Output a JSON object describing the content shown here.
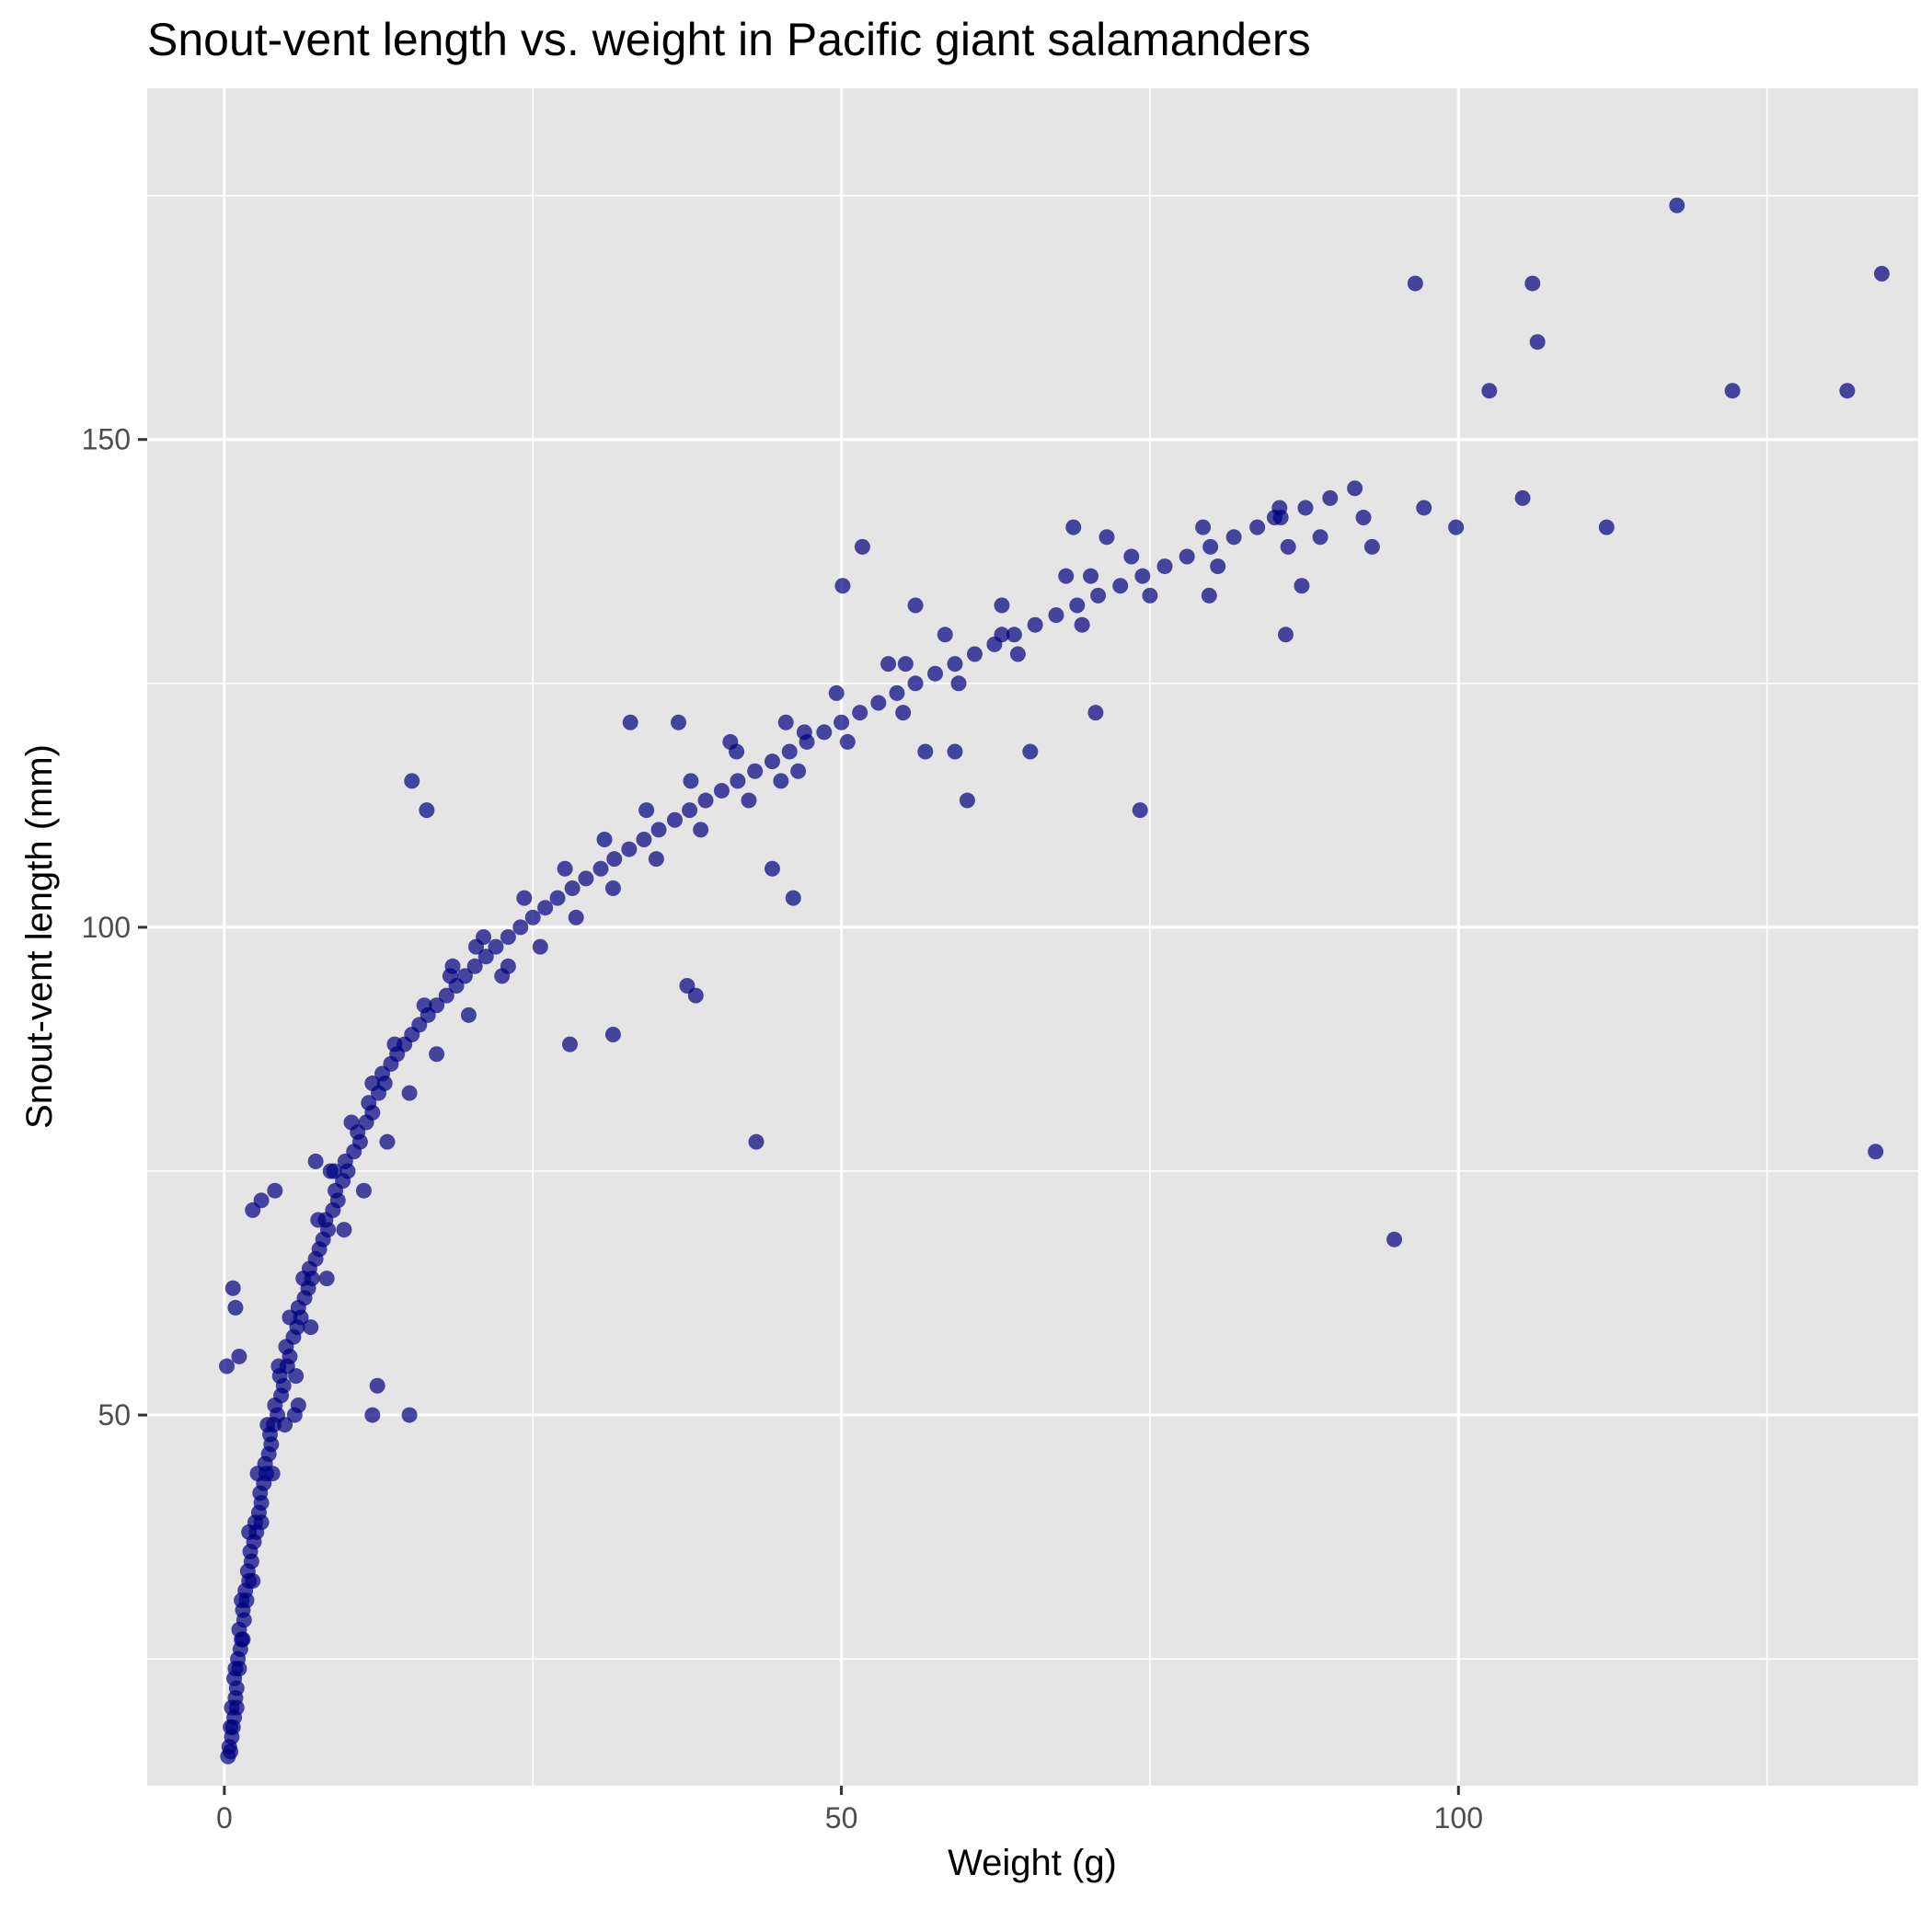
{
  "chart_data": {
    "type": "scatter",
    "title": "Snout-vent length vs. weight in Pacific giant salamanders",
    "xlabel": "Weight (g)",
    "ylabel": "Snout-vent length (mm)",
    "xlim": [
      -6.25,
      137.25
    ],
    "ylim": [
      12,
      186
    ],
    "x_ticks": [
      0,
      50,
      100
    ],
    "y_ticks": [
      50,
      100,
      150
    ],
    "x_tick_labels": [
      "0",
      "50",
      "100"
    ],
    "y_tick_labels": [
      "50",
      "100",
      "150"
    ],
    "grid": true,
    "legend": "none",
    "colors": {
      "panel": "#e5e5e5",
      "grid": "#ffffff",
      "point": "#000080",
      "tick": "#333333"
    },
    "series": [
      {
        "values": [
          [
            0.3,
            15
          ],
          [
            0.4,
            16
          ],
          [
            0.5,
            15.5
          ],
          [
            0.6,
            17
          ],
          [
            0.5,
            18
          ],
          [
            0.7,
            18
          ],
          [
            0.8,
            19
          ],
          [
            0.6,
            20
          ],
          [
            0.9,
            21
          ],
          [
            1.0,
            22
          ],
          [
            0.8,
            23
          ],
          [
            1.2,
            24
          ],
          [
            1.1,
            25
          ],
          [
            1.3,
            26
          ],
          [
            1.4,
            27
          ],
          [
            1.2,
            28
          ],
          [
            1.6,
            29
          ],
          [
            1.5,
            30
          ],
          [
            1.8,
            31
          ],
          [
            1.7,
            32
          ],
          [
            2.0,
            33
          ],
          [
            1.9,
            34
          ],
          [
            2.2,
            35
          ],
          [
            2.1,
            36
          ],
          [
            2.4,
            37
          ],
          [
            2.6,
            38
          ],
          [
            2.5,
            39
          ],
          [
            2.8,
            40
          ],
          [
            3.0,
            41
          ],
          [
            2.9,
            42
          ],
          [
            3.2,
            43
          ],
          [
            3.4,
            44
          ],
          [
            3.3,
            45
          ],
          [
            3.6,
            46
          ],
          [
            3.8,
            47
          ],
          [
            3.7,
            48
          ],
          [
            4.0,
            49
          ],
          [
            4.3,
            50
          ],
          [
            4.1,
            51
          ],
          [
            4.6,
            52
          ],
          [
            4.8,
            53
          ],
          [
            4.5,
            54
          ],
          [
            5.1,
            55
          ],
          [
            5.3,
            56
          ],
          [
            5.0,
            57
          ],
          [
            5.6,
            58
          ],
          [
            5.9,
            59
          ],
          [
            6.2,
            60
          ],
          [
            6.0,
            61
          ],
          [
            6.5,
            62
          ],
          [
            6.8,
            63
          ],
          [
            7.1,
            64
          ],
          [
            6.9,
            65
          ],
          [
            7.4,
            66
          ],
          [
            7.7,
            67
          ],
          [
            8.0,
            68
          ],
          [
            8.4,
            69
          ],
          [
            8.2,
            70
          ],
          [
            8.8,
            71
          ],
          [
            9.2,
            72
          ],
          [
            9.0,
            73
          ],
          [
            9.6,
            74
          ],
          [
            10.0,
            75
          ],
          [
            9.8,
            76
          ],
          [
            10.5,
            77
          ],
          [
            11.0,
            78
          ],
          [
            10.8,
            79
          ],
          [
            11.5,
            80
          ],
          [
            12.0,
            81
          ],
          [
            11.7,
            82
          ],
          [
            12.5,
            83
          ],
          [
            13.0,
            84
          ],
          [
            12.8,
            85
          ],
          [
            13.5,
            86
          ],
          [
            14.0,
            87
          ],
          [
            14.6,
            88
          ],
          [
            15.2,
            89
          ],
          [
            15.8,
            90
          ],
          [
            16.5,
            91
          ],
          [
            17.2,
            92
          ],
          [
            18.0,
            93
          ],
          [
            18.8,
            94
          ],
          [
            19.5,
            95
          ],
          [
            20.3,
            96
          ],
          [
            21.2,
            97
          ],
          [
            22.0,
            98
          ],
          [
            23.0,
            99
          ],
          [
            24.0,
            100
          ],
          [
            25.0,
            101
          ],
          [
            26.0,
            102
          ],
          [
            27.0,
            103
          ],
          [
            28.2,
            104
          ],
          [
            29.3,
            105
          ],
          [
            30.5,
            106
          ],
          [
            31.6,
            107
          ],
          [
            32.8,
            108
          ],
          [
            34.0,
            109
          ],
          [
            35.2,
            110
          ],
          [
            36.5,
            111
          ],
          [
            37.7,
            112
          ],
          [
            39.0,
            113
          ],
          [
            40.3,
            114
          ],
          [
            41.6,
            115
          ],
          [
            43.0,
            116
          ],
          [
            44.4,
            117
          ],
          [
            45.8,
            118
          ],
          [
            47.2,
            119
          ],
          [
            48.6,
            120
          ],
          [
            50.0,
            121
          ],
          [
            51.5,
            122
          ],
          [
            53.0,
            123
          ],
          [
            54.5,
            124
          ],
          [
            56.0,
            125
          ],
          [
            57.6,
            126
          ],
          [
            59.2,
            127
          ],
          [
            60.8,
            128
          ],
          [
            62.4,
            129
          ],
          [
            64.0,
            130
          ],
          [
            65.7,
            131
          ],
          [
            67.4,
            132
          ],
          [
            69.1,
            133
          ],
          [
            70.8,
            134
          ],
          [
            72.6,
            135
          ],
          [
            74.4,
            136
          ],
          [
            76.2,
            137
          ],
          [
            78.0,
            138
          ],
          [
            79.9,
            139
          ],
          [
            81.8,
            140
          ],
          [
            83.7,
            141
          ],
          [
            85.6,
            142
          ],
          [
            87.6,
            143
          ],
          [
            89.6,
            144
          ],
          [
            91.6,
            145
          ],
          [
            1.0,
            20
          ],
          [
            0.9,
            24
          ],
          [
            1.5,
            27
          ],
          [
            1.4,
            31
          ],
          [
            2.3,
            33
          ],
          [
            2.0,
            38
          ],
          [
            3.0,
            39
          ],
          [
            2.7,
            44
          ],
          [
            3.9,
            44
          ],
          [
            3.5,
            49
          ],
          [
            4.9,
            49
          ],
          [
            4.4,
            55
          ],
          [
            5.8,
            54
          ],
          [
            5.3,
            60
          ],
          [
            7.0,
            59
          ],
          [
            6.4,
            64
          ],
          [
            8.3,
            64
          ],
          [
            7.6,
            70
          ],
          [
            9.7,
            69
          ],
          [
            8.9,
            75
          ],
          [
            11.3,
            73
          ],
          [
            10.3,
            80
          ],
          [
            13.2,
            78
          ],
          [
            12.0,
            84
          ],
          [
            15.0,
            83
          ],
          [
            13.8,
            88
          ],
          [
            17.2,
            87
          ],
          [
            16.2,
            92
          ],
          [
            19.8,
            91
          ],
          [
            18.5,
            96
          ],
          [
            22.5,
            95
          ],
          [
            21.0,
            99
          ],
          [
            25.6,
            98
          ],
          [
            24.3,
            103
          ],
          [
            28.5,
            101
          ],
          [
            27.6,
            106
          ],
          [
            31.5,
            104
          ],
          [
            30.8,
            109
          ],
          [
            35.0,
            107
          ],
          [
            34.2,
            112
          ],
          [
            38.6,
            110
          ],
          [
            37.8,
            115
          ],
          [
            42.5,
            113
          ],
          [
            41.5,
            118
          ],
          [
            46.5,
            116
          ],
          [
            45.5,
            121
          ],
          [
            50.5,
            119
          ],
          [
            49.6,
            124
          ],
          [
            55.0,
            122
          ],
          [
            53.8,
            127
          ],
          [
            59.5,
            125
          ],
          [
            58.4,
            130
          ],
          [
            64.3,
            128
          ],
          [
            63.0,
            133
          ],
          [
            69.5,
            131
          ],
          [
            68.2,
            136
          ],
          [
            75.0,
            134
          ],
          [
            73.5,
            138
          ],
          [
            80.5,
            137
          ],
          [
            79.3,
            141
          ],
          [
            86.2,
            139
          ],
          [
            85.5,
            143
          ],
          [
            92.3,
            142
          ],
          [
            0.2,
            55
          ],
          [
            0.7,
            63
          ],
          [
            1.2,
            56
          ],
          [
            0.9,
            61
          ],
          [
            2.3,
            71
          ],
          [
            4.1,
            73
          ],
          [
            3.0,
            72
          ],
          [
            5.7,
            50
          ],
          [
            6.0,
            51
          ],
          [
            7.4,
            76
          ],
          [
            8.6,
            75
          ],
          [
            12.0,
            50
          ],
          [
            12.4,
            53
          ],
          [
            15.0,
            50
          ],
          [
            15.2,
            115
          ],
          [
            16.4,
            112
          ],
          [
            18.3,
            95
          ],
          [
            20.4,
            98
          ],
          [
            23.0,
            96
          ],
          [
            28.0,
            88
          ],
          [
            31.5,
            89
          ],
          [
            32.9,
            121
          ],
          [
            36.8,
            121
          ],
          [
            37.5,
            94
          ],
          [
            38.2,
            93
          ],
          [
            41.0,
            119
          ],
          [
            43.1,
            78
          ],
          [
            44.4,
            106
          ],
          [
            45.1,
            115
          ],
          [
            46.1,
            103
          ],
          [
            47.0,
            120
          ],
          [
            50.1,
            135
          ],
          [
            51.7,
            139
          ],
          [
            55.2,
            127
          ],
          [
            56.0,
            133
          ],
          [
            56.8,
            118
          ],
          [
            59.2,
            118
          ],
          [
            60.2,
            113
          ],
          [
            63.0,
            130
          ],
          [
            65.3,
            118
          ],
          [
            68.8,
            141
          ],
          [
            70.2,
            136
          ],
          [
            70.6,
            122
          ],
          [
            71.5,
            140
          ],
          [
            74.2,
            112
          ],
          [
            79.8,
            134
          ],
          [
            85.1,
            142
          ],
          [
            86.0,
            130
          ],
          [
            87.3,
            135
          ],
          [
            88.8,
            140
          ],
          [
            93.0,
            139
          ],
          [
            94.8,
            68
          ],
          [
            96.5,
            166
          ],
          [
            97.2,
            143
          ],
          [
            99.8,
            141
          ],
          [
            102.5,
            155
          ],
          [
            105.2,
            144
          ],
          [
            106.0,
            166
          ],
          [
            106.4,
            160
          ],
          [
            112.0,
            141
          ],
          [
            117.7,
            174
          ],
          [
            122.2,
            155
          ],
          [
            131.5,
            155
          ],
          [
            133.8,
            77
          ],
          [
            134.3,
            167
          ]
        ]
      }
    ]
  }
}
